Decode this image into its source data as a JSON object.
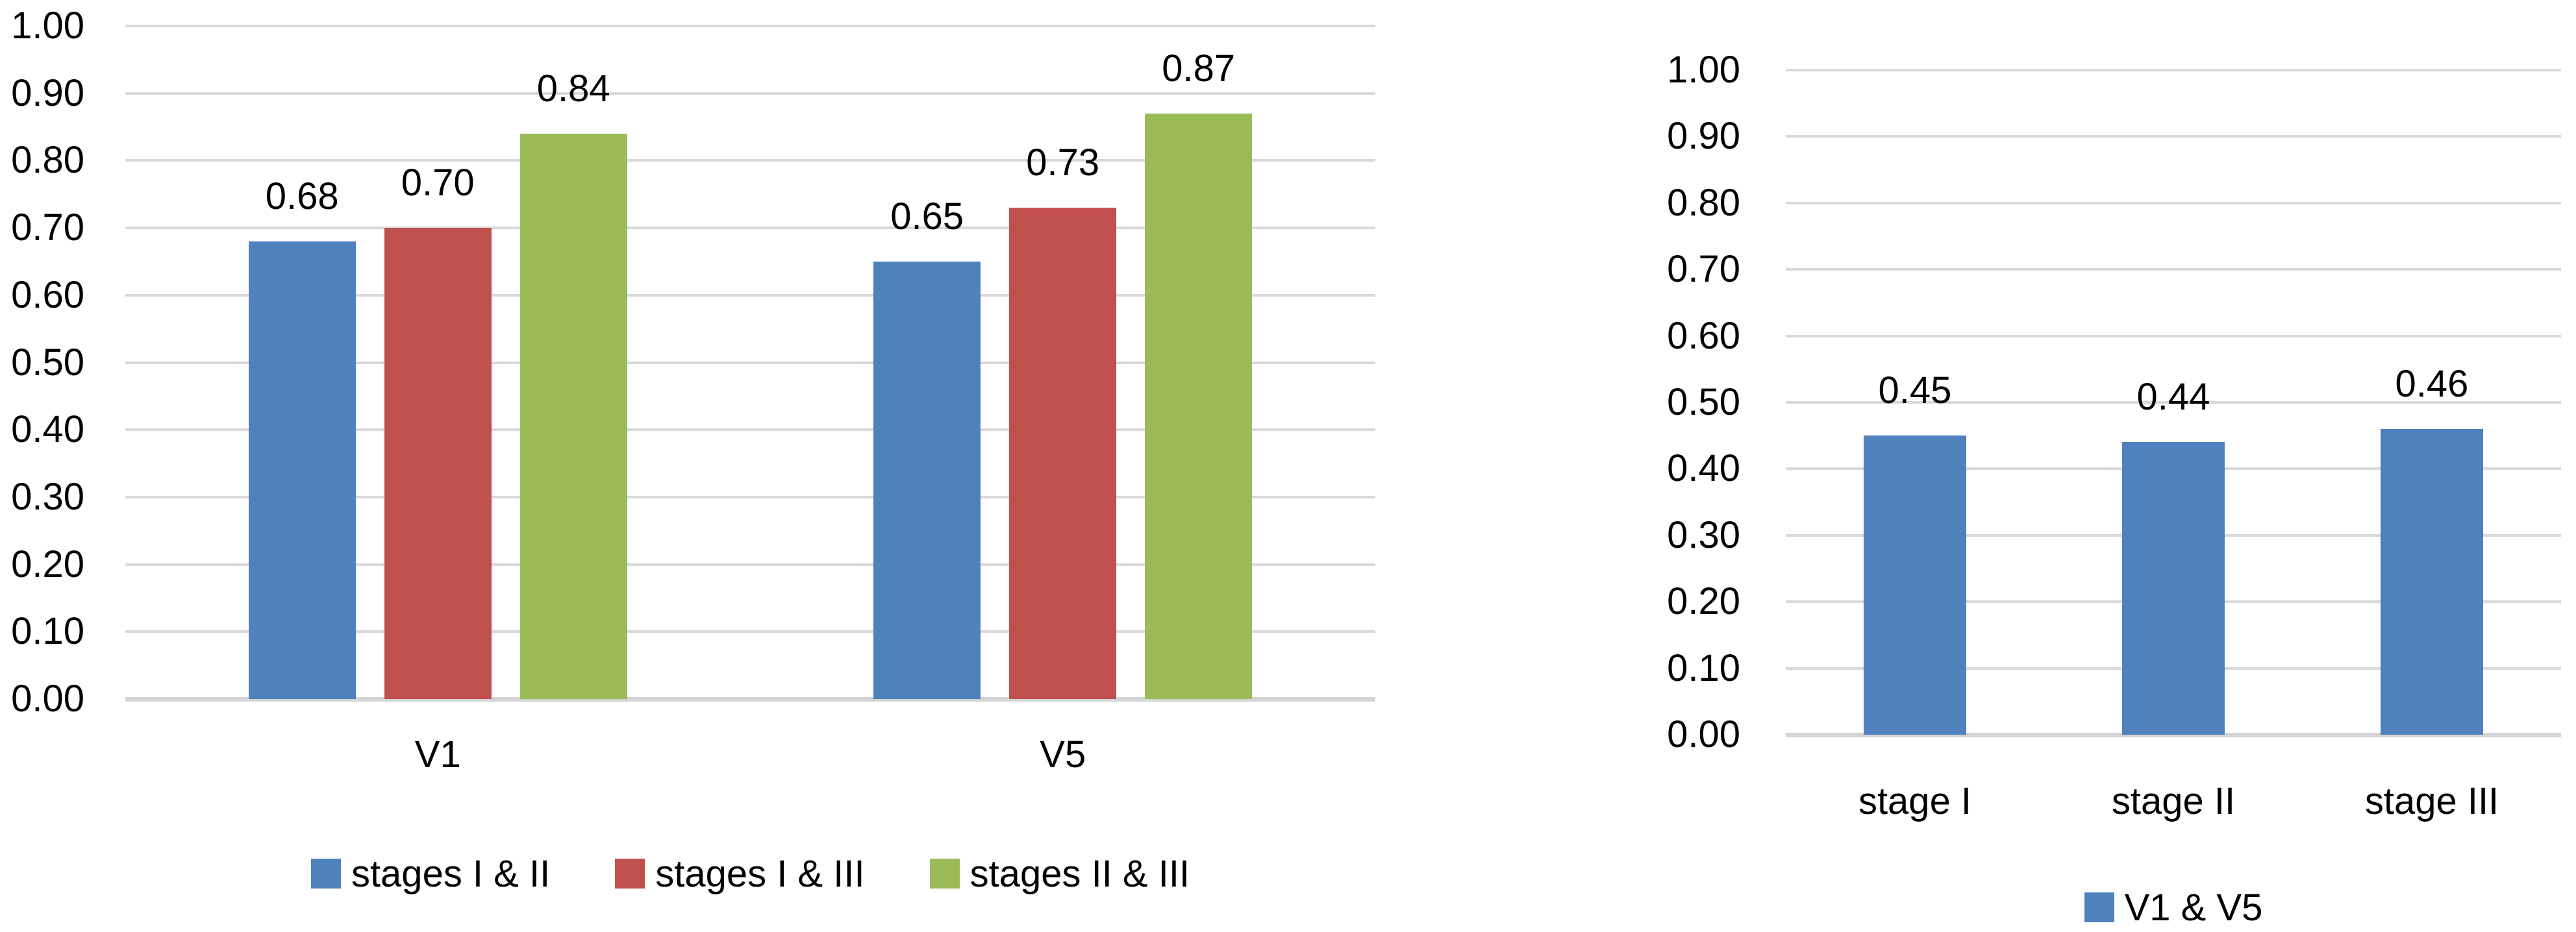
{
  "figure": {
    "background_color": "#ffffff",
    "gridline_color": "#d9d9d9",
    "axis_line_color": "#d4d4d4",
    "text_color": "#000000"
  },
  "chart_data": [
    {
      "id": "left",
      "type": "bar",
      "title": "",
      "xlabel": "",
      "ylabel": "",
      "categories": [
        "V1",
        "V5"
      ],
      "series": [
        {
          "name": "stages I & II",
          "color": "#4f81bd",
          "values": [
            0.68,
            0.65
          ],
          "labels": [
            "0.68",
            "0.65"
          ]
        },
        {
          "name": "stages I & III",
          "color": "#c0504d",
          "values": [
            0.7,
            0.73
          ],
          "labels": [
            "0.70",
            "0.73"
          ]
        },
        {
          "name": "stages II & III",
          "color": "#9bbb59",
          "values": [
            0.84,
            0.87
          ],
          "labels": [
            "0.84",
            "0.87"
          ]
        }
      ],
      "yticks": [
        "1.00",
        "0.90",
        "0.80",
        "0.70",
        "0.60",
        "0.50",
        "0.40",
        "0.30",
        "0.20",
        "0.10",
        "0.00"
      ],
      "ylim": [
        0,
        1
      ],
      "grid": true,
      "legend_position": "bottom"
    },
    {
      "id": "right",
      "type": "bar",
      "title": "",
      "xlabel": "",
      "ylabel": "",
      "categories": [
        "stage I",
        "stage II",
        "stage III"
      ],
      "series": [
        {
          "name": "V1 & V5",
          "color": "#4f81bd",
          "values": [
            0.45,
            0.44,
            0.46
          ],
          "labels": [
            "0.45",
            "0.44",
            "0.46"
          ]
        }
      ],
      "yticks": [
        "1.00",
        "0.90",
        "0.80",
        "0.70",
        "0.60",
        "0.50",
        "0.40",
        "0.30",
        "0.20",
        "0.10",
        "0.00"
      ],
      "ylim": [
        0,
        1
      ],
      "grid": true,
      "legend_position": "bottom"
    }
  ]
}
